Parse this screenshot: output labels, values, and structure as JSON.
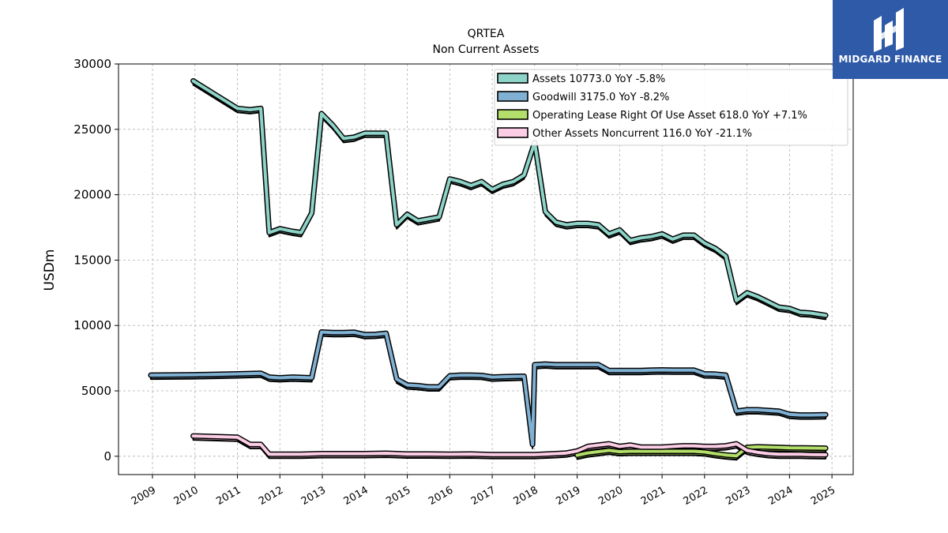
{
  "brand": {
    "name": "MIDGARD FINANCE",
    "bg_color": "#2f5aa8"
  },
  "chart_data": {
    "type": "area",
    "title": "QRTEA",
    "subtitle": "Non Current  Assets",
    "ylabel": "USDm",
    "xlabel": "",
    "ylim": [
      -1400,
      30000
    ],
    "xlim": [
      2008.2,
      2025.5
    ],
    "yticks": [
      0,
      5000,
      10000,
      15000,
      20000,
      25000,
      30000
    ],
    "yticklabels": [
      "0",
      "5000",
      "10000",
      "15000",
      "20000",
      "25000",
      "30000"
    ],
    "xticks": [
      2009,
      2010,
      2011,
      2012,
      2013,
      2014,
      2015,
      2016,
      2017,
      2018,
      2019,
      2020,
      2021,
      2022,
      2023,
      2024,
      2025
    ],
    "xticklabels": [
      "2009",
      "2010",
      "2011",
      "2012",
      "2013",
      "2014",
      "2015",
      "2016",
      "2017",
      "2018",
      "2019",
      "2020",
      "2021",
      "2022",
      "2023",
      "2024",
      "2025"
    ],
    "grid": true,
    "legend_position": "top-right",
    "series": [
      {
        "name": "Assets  10773.0 YoY -5.8%",
        "color": "#8dd3c7",
        "points": [
          [
            2009.96,
            28700
          ],
          [
            2011.0,
            26600
          ],
          [
            2011.3,
            26500
          ],
          [
            2011.55,
            26600
          ],
          [
            2011.75,
            17100
          ],
          [
            2012.0,
            17400
          ],
          [
            2012.3,
            17200
          ],
          [
            2012.5,
            17100
          ],
          [
            2012.75,
            18600
          ],
          [
            2012.98,
            26200
          ],
          [
            2013.25,
            25300
          ],
          [
            2013.5,
            24300
          ],
          [
            2013.75,
            24400
          ],
          [
            2014.0,
            24700
          ],
          [
            2014.25,
            24700
          ],
          [
            2014.5,
            24700
          ],
          [
            2014.75,
            17700
          ],
          [
            2015.0,
            18500
          ],
          [
            2015.25,
            18000
          ],
          [
            2015.75,
            18300
          ],
          [
            2016.0,
            21200
          ],
          [
            2016.25,
            21000
          ],
          [
            2016.5,
            20700
          ],
          [
            2016.75,
            21000
          ],
          [
            2017.0,
            20400
          ],
          [
            2017.25,
            20800
          ],
          [
            2017.5,
            21000
          ],
          [
            2017.75,
            21500
          ],
          [
            2018.0,
            24000
          ],
          [
            2018.25,
            18700
          ],
          [
            2018.5,
            17900
          ],
          [
            2018.75,
            17700
          ],
          [
            2019.0,
            17800
          ],
          [
            2019.25,
            17800
          ],
          [
            2019.5,
            17700
          ],
          [
            2019.75,
            17000
          ],
          [
            2020.0,
            17300
          ],
          [
            2020.25,
            16500
          ],
          [
            2020.5,
            16700
          ],
          [
            2020.75,
            16800
          ],
          [
            2021.0,
            17000
          ],
          [
            2021.25,
            16600
          ],
          [
            2021.5,
            16900
          ],
          [
            2021.75,
            16900
          ],
          [
            2022.0,
            16300
          ],
          [
            2022.25,
            15900
          ],
          [
            2022.5,
            15300
          ],
          [
            2022.75,
            11900
          ],
          [
            2023.0,
            12500
          ],
          [
            2023.25,
            12200
          ],
          [
            2023.5,
            11800
          ],
          [
            2023.75,
            11400
          ],
          [
            2024.0,
            11300
          ],
          [
            2024.25,
            11000
          ],
          [
            2024.5,
            10950
          ],
          [
            2024.85,
            10773
          ]
        ]
      },
      {
        "name": "Goodwill  3175.0 YoY -8.2%",
        "color": "#80b1d3",
        "points": [
          [
            2008.96,
            6200
          ],
          [
            2010.0,
            6230
          ],
          [
            2011.0,
            6300
          ],
          [
            2011.55,
            6350
          ],
          [
            2011.75,
            6050
          ],
          [
            2012.0,
            6000
          ],
          [
            2012.3,
            6050
          ],
          [
            2012.75,
            6000
          ],
          [
            2012.98,
            9500
          ],
          [
            2013.25,
            9450
          ],
          [
            2013.5,
            9450
          ],
          [
            2013.75,
            9480
          ],
          [
            2014.0,
            9300
          ],
          [
            2014.25,
            9320
          ],
          [
            2014.5,
            9400
          ],
          [
            2014.75,
            5900
          ],
          [
            2015.0,
            5450
          ],
          [
            2015.25,
            5400
          ],
          [
            2015.5,
            5300
          ],
          [
            2015.75,
            5300
          ],
          [
            2016.0,
            6150
          ],
          [
            2016.25,
            6200
          ],
          [
            2016.5,
            6200
          ],
          [
            2016.75,
            6180
          ],
          [
            2017.0,
            6050
          ],
          [
            2017.25,
            6080
          ],
          [
            2017.5,
            6100
          ],
          [
            2017.75,
            6120
          ],
          [
            2017.95,
            900
          ],
          [
            2018.0,
            7000
          ],
          [
            2018.25,
            7050
          ],
          [
            2018.5,
            7000
          ],
          [
            2018.75,
            7000
          ],
          [
            2019.0,
            7000
          ],
          [
            2019.25,
            7000
          ],
          [
            2019.5,
            7000
          ],
          [
            2019.75,
            6550
          ],
          [
            2020.0,
            6550
          ],
          [
            2020.25,
            6550
          ],
          [
            2020.5,
            6550
          ],
          [
            2020.75,
            6580
          ],
          [
            2021.0,
            6600
          ],
          [
            2021.25,
            6580
          ],
          [
            2021.5,
            6580
          ],
          [
            2021.75,
            6580
          ],
          [
            2022.0,
            6300
          ],
          [
            2022.25,
            6280
          ],
          [
            2022.5,
            6200
          ],
          [
            2022.75,
            3450
          ],
          [
            2023.0,
            3550
          ],
          [
            2023.25,
            3550
          ],
          [
            2023.5,
            3500
          ],
          [
            2023.75,
            3450
          ],
          [
            2024.0,
            3200
          ],
          [
            2024.25,
            3150
          ],
          [
            2024.5,
            3150
          ],
          [
            2024.85,
            3175
          ]
        ]
      },
      {
        "name": "Operating Lease Right Of Use Asset  618.0 YoY +7.1%",
        "color": "#b3de69",
        "points": [
          [
            2019.0,
            80
          ],
          [
            2019.25,
            250
          ],
          [
            2019.5,
            350
          ],
          [
            2019.75,
            450
          ],
          [
            2020.0,
            350
          ],
          [
            2020.25,
            380
          ],
          [
            2020.5,
            380
          ],
          [
            2020.75,
            380
          ],
          [
            2021.0,
            380
          ],
          [
            2021.25,
            380
          ],
          [
            2021.5,
            380
          ],
          [
            2021.75,
            380
          ],
          [
            2022.0,
            330
          ],
          [
            2022.25,
            200
          ],
          [
            2022.5,
            100
          ],
          [
            2022.75,
            30
          ],
          [
            2023.0,
            680
          ],
          [
            2023.25,
            720
          ],
          [
            2023.5,
            700
          ],
          [
            2023.75,
            680
          ],
          [
            2024.0,
            650
          ],
          [
            2024.25,
            640
          ],
          [
            2024.5,
            630
          ],
          [
            2024.85,
            618
          ]
        ]
      },
      {
        "name": "Other Assets Noncurrent  116.0 YoY -21.1%",
        "color": "#fccde5",
        "points": [
          [
            2009.96,
            1550
          ],
          [
            2011.0,
            1450
          ],
          [
            2011.3,
            900
          ],
          [
            2011.55,
            900
          ],
          [
            2011.75,
            150
          ],
          [
            2012.0,
            150
          ],
          [
            2012.5,
            150
          ],
          [
            2012.98,
            200
          ],
          [
            2013.5,
            200
          ],
          [
            2014.0,
            200
          ],
          [
            2014.5,
            230
          ],
          [
            2015.0,
            170
          ],
          [
            2015.5,
            170
          ],
          [
            2016.0,
            150
          ],
          [
            2016.5,
            170
          ],
          [
            2017.0,
            130
          ],
          [
            2017.5,
            130
          ],
          [
            2018.0,
            130
          ],
          [
            2018.5,
            200
          ],
          [
            2018.75,
            250
          ],
          [
            2019.0,
            400
          ],
          [
            2019.25,
            750
          ],
          [
            2019.5,
            850
          ],
          [
            2019.75,
            950
          ],
          [
            2020.0,
            750
          ],
          [
            2020.25,
            850
          ],
          [
            2020.5,
            700
          ],
          [
            2020.75,
            700
          ],
          [
            2021.0,
            700
          ],
          [
            2021.25,
            750
          ],
          [
            2021.5,
            800
          ],
          [
            2021.75,
            800
          ],
          [
            2022.0,
            750
          ],
          [
            2022.25,
            750
          ],
          [
            2022.5,
            800
          ],
          [
            2022.75,
            950
          ],
          [
            2023.0,
            450
          ],
          [
            2023.25,
            300
          ],
          [
            2023.5,
            200
          ],
          [
            2023.75,
            150
          ],
          [
            2024.0,
            150
          ],
          [
            2024.25,
            150
          ],
          [
            2024.5,
            130
          ],
          [
            2024.85,
            116
          ]
        ]
      }
    ]
  }
}
